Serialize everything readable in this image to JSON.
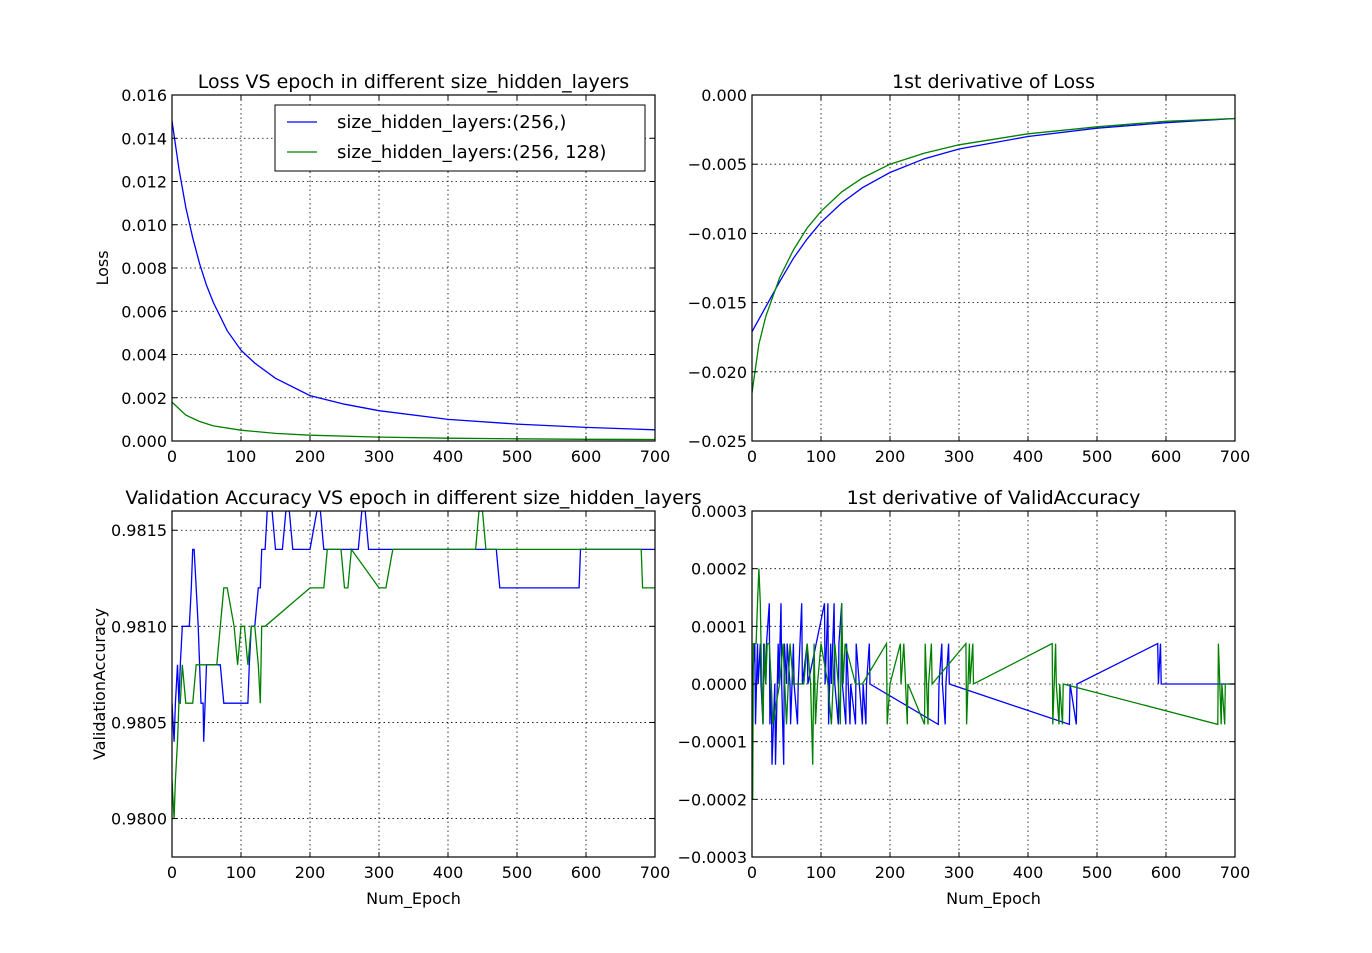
{
  "figure": {
    "background": "#ffffff"
  },
  "colors": {
    "series1": "#0000ff",
    "series2": "#008000"
  },
  "chart_data": [
    {
      "id": "loss",
      "type": "line",
      "title": "Loss VS epoch in different size_hidden_layers",
      "xlabel": "",
      "ylabel": "Loss",
      "xlim": [
        0,
        700
      ],
      "ylim": [
        0,
        0.016
      ],
      "xticks": [
        0,
        100,
        200,
        300,
        400,
        500,
        600,
        700
      ],
      "yticks": [
        0,
        0.002,
        0.004,
        0.006,
        0.008,
        0.01,
        0.012,
        0.014,
        0.016
      ],
      "ytick_labels": [
        "0.000",
        "0.002",
        "0.004",
        "0.006",
        "0.008",
        "0.010",
        "0.012",
        "0.014",
        "0.016"
      ],
      "grid": true,
      "legend": {
        "placement": "top-right",
        "entries": [
          "size_hidden_layers:(256,)",
          "size_hidden_layers:(256, 128)"
        ]
      },
      "series": [
        {
          "name": "size_hidden_layers:(256,)",
          "color": "#0000ff",
          "x": [
            0,
            10,
            20,
            30,
            40,
            50,
            60,
            80,
            100,
            120,
            150,
            200,
            250,
            300,
            400,
            500,
            600,
            700
          ],
          "y": [
            0.0148,
            0.0126,
            0.0108,
            0.0094,
            0.0082,
            0.0072,
            0.0064,
            0.0051,
            0.0042,
            0.0036,
            0.0029,
            0.0021,
            0.0017,
            0.0014,
            0.001,
            0.00078,
            0.00063,
            0.00052
          ]
        },
        {
          "name": "size_hidden_layers:(256, 128)",
          "color": "#008000",
          "x": [
            0,
            10,
            20,
            40,
            60,
            100,
            150,
            200,
            300,
            400,
            500,
            600,
            700
          ],
          "y": [
            0.0018,
            0.0015,
            0.0012,
            0.0009,
            0.0007,
            0.0005,
            0.00035,
            0.00027,
            0.00018,
            0.00013,
            0.0001,
            8e-05,
            7e-05
          ]
        }
      ]
    },
    {
      "id": "loss_deriv",
      "type": "line",
      "title": "1st derivative of Loss",
      "xlabel": "",
      "ylabel": "",
      "xlim": [
        0,
        700
      ],
      "ylim": [
        -0.025,
        0
      ],
      "xticks": [
        0,
        100,
        200,
        300,
        400,
        500,
        600,
        700
      ],
      "yticks": [
        -0.025,
        -0.02,
        -0.015,
        -0.01,
        -0.005,
        0.0
      ],
      "ytick_labels": [
        "−0.025",
        "−0.020",
        "−0.015",
        "−0.010",
        "−0.005",
        "0.000"
      ],
      "grid": true,
      "series": [
        {
          "name": "",
          "color": "#0000ff",
          "x": [
            0,
            20,
            40,
            60,
            80,
            100,
            130,
            160,
            200,
            250,
            300,
            400,
            500,
            600,
            700
          ],
          "y": [
            -0.0171,
            -0.0153,
            -0.0135,
            -0.0118,
            -0.0104,
            -0.0092,
            -0.0078,
            -0.0067,
            -0.0056,
            -0.0046,
            -0.0039,
            -0.003,
            -0.0024,
            -0.002,
            -0.0017
          ]
        },
        {
          "name": "",
          "color": "#008000",
          "x": [
            0,
            10,
            20,
            40,
            60,
            80,
            100,
            130,
            160,
            200,
            250,
            300,
            400,
            500,
            600,
            700
          ],
          "y": [
            -0.0215,
            -0.018,
            -0.016,
            -0.0132,
            -0.0112,
            -0.0096,
            -0.0084,
            -0.007,
            -0.006,
            -0.005,
            -0.0042,
            -0.0036,
            -0.0028,
            -0.0023,
            -0.0019,
            -0.0017
          ]
        }
      ]
    },
    {
      "id": "val_acc",
      "type": "line",
      "title": "Validation Accuracy VS epoch in different size_hidden_layers",
      "xlabel": "Num_Epoch",
      "ylabel": "ValidationAccuracy",
      "xlim": [
        0,
        700
      ],
      "ylim": [
        0.9798,
        0.9816
      ],
      "xticks": [
        0,
        100,
        200,
        300,
        400,
        500,
        600,
        700
      ],
      "yticks": [
        0.98,
        0.9805,
        0.981,
        0.9815
      ],
      "ytick_labels": [
        "0.9800",
        "0.9805",
        "0.9810",
        "0.9815"
      ],
      "grid": true,
      "series": [
        {
          "name": "",
          "color": "#0000ff",
          "x": [
            0,
            3,
            5,
            8,
            10,
            12,
            15,
            20,
            25,
            28,
            30,
            32,
            35,
            38,
            40,
            42,
            45,
            46,
            48,
            50,
            55,
            65,
            70,
            75,
            80,
            110,
            112,
            115,
            120,
            125,
            128,
            130,
            135,
            138,
            140,
            145,
            150,
            160,
            165,
            170,
            175,
            180,
            200,
            210,
            215,
            220,
            260,
            270,
            275,
            280,
            285,
            300,
            310,
            320,
            400,
            450,
            460,
            470,
            475,
            580,
            590,
            592,
            700
          ],
          "y": [
            0.9806,
            0.9804,
            0.9806,
            0.9808,
            0.9806,
            0.9808,
            0.981,
            0.981,
            0.981,
            0.9812,
            0.9814,
            0.9814,
            0.9812,
            0.981,
            0.9808,
            0.9806,
            0.9806,
            0.9804,
            0.9806,
            0.9808,
            0.9808,
            0.9808,
            0.9808,
            0.9806,
            0.9806,
            0.9806,
            0.9808,
            0.981,
            0.981,
            0.9812,
            0.9812,
            0.9814,
            0.9814,
            0.9816,
            0.9816,
            0.9816,
            0.9814,
            0.9814,
            0.9816,
            0.9816,
            0.9814,
            0.9814,
            0.9814,
            0.9816,
            0.9816,
            0.9814,
            0.9814,
            0.9814,
            0.9816,
            0.9816,
            0.9814,
            0.9814,
            0.9814,
            0.9814,
            0.9814,
            0.9814,
            0.9814,
            0.9814,
            0.9812,
            0.9812,
            0.9812,
            0.9814,
            0.9814
          ]
        },
        {
          "name": "",
          "color": "#008000",
          "x": [
            0,
            3,
            5,
            8,
            10,
            12,
            15,
            20,
            25,
            30,
            35,
            40,
            45,
            50,
            55,
            65,
            70,
            75,
            80,
            90,
            95,
            100,
            105,
            110,
            115,
            120,
            125,
            128,
            130,
            135,
            200,
            210,
            220,
            225,
            230,
            245,
            250,
            255,
            260,
            300,
            310,
            320,
            330,
            440,
            445,
            450,
            455,
            600,
            680,
            682,
            685,
            700
          ],
          "y": [
            0.9802,
            0.98,
            0.9802,
            0.9804,
            0.9806,
            0.9806,
            0.9808,
            0.9806,
            0.9806,
            0.9806,
            0.9808,
            0.9808,
            0.9808,
            0.9808,
            0.9808,
            0.9808,
            0.981,
            0.9812,
            0.9812,
            0.981,
            0.9808,
            0.981,
            0.981,
            0.9808,
            0.981,
            0.981,
            0.9808,
            0.9806,
            0.981,
            0.981,
            0.9812,
            0.9812,
            0.9812,
            0.9814,
            0.9814,
            0.9814,
            0.9812,
            0.9812,
            0.9814,
            0.9812,
            0.9812,
            0.9814,
            0.9814,
            0.9814,
            0.9816,
            0.9816,
            0.9814,
            0.9814,
            0.9814,
            0.9812,
            0.9812,
            0.9812
          ]
        }
      ]
    },
    {
      "id": "val_acc_deriv",
      "type": "line",
      "title": "1st derivative of ValidAccuracy",
      "xlabel": "Num_Epoch",
      "ylabel": "",
      "xlim": [
        0,
        700
      ],
      "ylim": [
        -0.0003,
        0.0003
      ],
      "xticks": [
        0,
        100,
        200,
        300,
        400,
        500,
        600,
        700
      ],
      "yticks": [
        -0.0003,
        -0.0002,
        -0.0001,
        0,
        0.0001,
        0.0002,
        0.0003
      ],
      "ytick_labels": [
        "−0.0003",
        "−0.0002",
        "−0.0001",
        "0.0000",
        "0.0001",
        "0.0002",
        "0.0003"
      ],
      "grid": true,
      "series": [
        {
          "name": "",
          "color": "#0000ff",
          "x": [
            0,
            4,
            5,
            8,
            9,
            12,
            13,
            16,
            17,
            20,
            21,
            25,
            26,
            28,
            29,
            33,
            34,
            38,
            39,
            42,
            43,
            46,
            47,
            50,
            51,
            55,
            56,
            60,
            61,
            66,
            67,
            72,
            73,
            80,
            81,
            105,
            106,
            110,
            111,
            114,
            115,
            119,
            120,
            125,
            126,
            130,
            131,
            136,
            137,
            142,
            143,
            150,
            151,
            160,
            161,
            165,
            166,
            170,
            171,
            270,
            271,
            275,
            276,
            280,
            281,
            285,
            286,
            460,
            461,
            470,
            471,
            588,
            589,
            592,
            593,
            700
          ],
          "y": [
            0,
            7e-05,
            -7e-05,
            7e-05,
            0,
            7e-05,
            0,
            -7e-05,
            7e-05,
            0,
            7e-05,
            0.00014,
            -7e-05,
            0,
            -0.00014,
            0,
            -0.00014,
            7e-05,
            0,
            0.00014,
            0,
            -0.00014,
            7e-05,
            0,
            7e-05,
            0,
            -7e-05,
            7e-05,
            0,
            -7e-05,
            0,
            0.00014,
            0,
            7e-05,
            0,
            0.00014,
            0,
            0.00014,
            -7e-05,
            7e-05,
            0,
            0.00014,
            0,
            -7e-05,
            7e-05,
            0.00014,
            0,
            -7e-05,
            7e-05,
            -7e-05,
            0,
            -7e-05,
            7e-05,
            -7e-05,
            0,
            -7e-05,
            0,
            7e-05,
            0,
            -7e-05,
            0,
            7e-05,
            0,
            -7e-05,
            0,
            7e-05,
            0,
            -7e-05,
            0,
            -7e-05,
            0,
            7e-05,
            0,
            7e-05,
            0,
            0
          ]
        },
        {
          "name": "",
          "color": "#008000",
          "x": [
            0,
            1,
            2,
            4,
            6,
            8,
            10,
            12,
            14,
            16,
            18,
            20,
            22,
            25,
            28,
            30,
            40,
            45,
            50,
            55,
            60,
            70,
            75,
            80,
            85,
            88,
            90,
            92,
            95,
            100,
            110,
            115,
            120,
            125,
            128,
            130,
            132,
            135,
            150,
            160,
            195,
            196,
            200,
            215,
            216,
            220,
            225,
            226,
            250,
            251,
            255,
            256,
            260,
            261,
            310,
            311,
            315,
            316,
            320,
            321,
            435,
            436,
            440,
            441,
            445,
            446,
            450,
            451,
            675,
            676,
            680,
            681,
            685,
            686,
            700
          ],
          "y": [
            0,
            -0.0002,
            7e-05,
            7e-05,
            7e-05,
            0.00014,
            0.0002,
            0.00014,
            0,
            -7e-05,
            7e-05,
            0,
            7e-05,
            7e-05,
            0,
            -7e-05,
            0,
            7e-05,
            -7e-05,
            7e-05,
            0,
            0,
            0,
            7e-05,
            0,
            -0.00014,
            7e-05,
            -7e-05,
            0,
            7e-05,
            0,
            -7e-05,
            7e-05,
            0,
            -7e-05,
            0.00014,
            0,
            7e-05,
            0,
            0,
            7e-05,
            -7e-05,
            0,
            7e-05,
            0,
            7e-05,
            -7e-05,
            0,
            -7e-05,
            7e-05,
            -7e-05,
            0,
            7e-05,
            0,
            7e-05,
            -7e-05,
            7e-05,
            0,
            7e-05,
            0,
            7e-05,
            -7e-05,
            7e-05,
            0,
            -7e-05,
            0,
            -7e-05,
            0,
            -7e-05,
            7e-05,
            -7e-05,
            0,
            -7e-05,
            0,
            0
          ]
        }
      ]
    }
  ]
}
